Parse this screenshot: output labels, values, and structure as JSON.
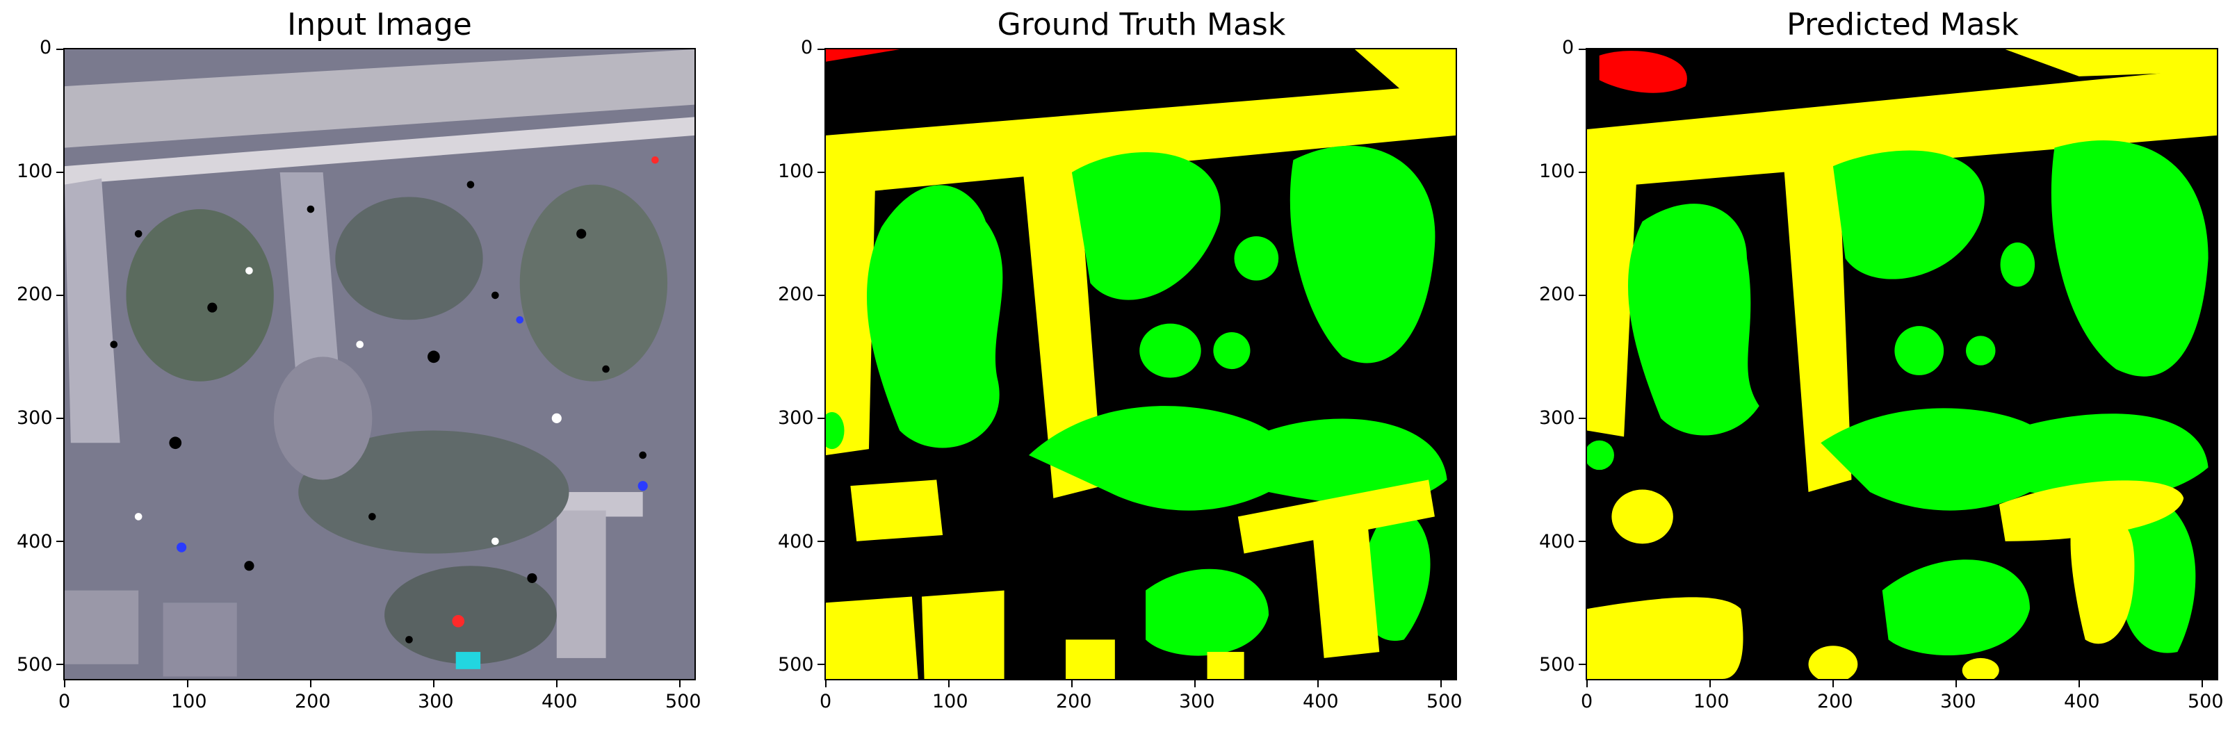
{
  "figure": {
    "panels": [
      {
        "id": "input",
        "title": "Input Image"
      },
      {
        "id": "gt",
        "title": "Ground Truth Mask"
      },
      {
        "id": "pred",
        "title": "Predicted Mask"
      }
    ],
    "x_ticks": [
      "0",
      "100",
      "200",
      "300",
      "400",
      "500"
    ],
    "y_ticks": [
      "0",
      "100",
      "200",
      "300",
      "400",
      "500"
    ],
    "axis_range": [
      0,
      512
    ],
    "mask_colors": {
      "background": "#000000",
      "building": "#ffff00",
      "vegetation": "#00ff00",
      "red_class": "#ff0000"
    }
  }
}
